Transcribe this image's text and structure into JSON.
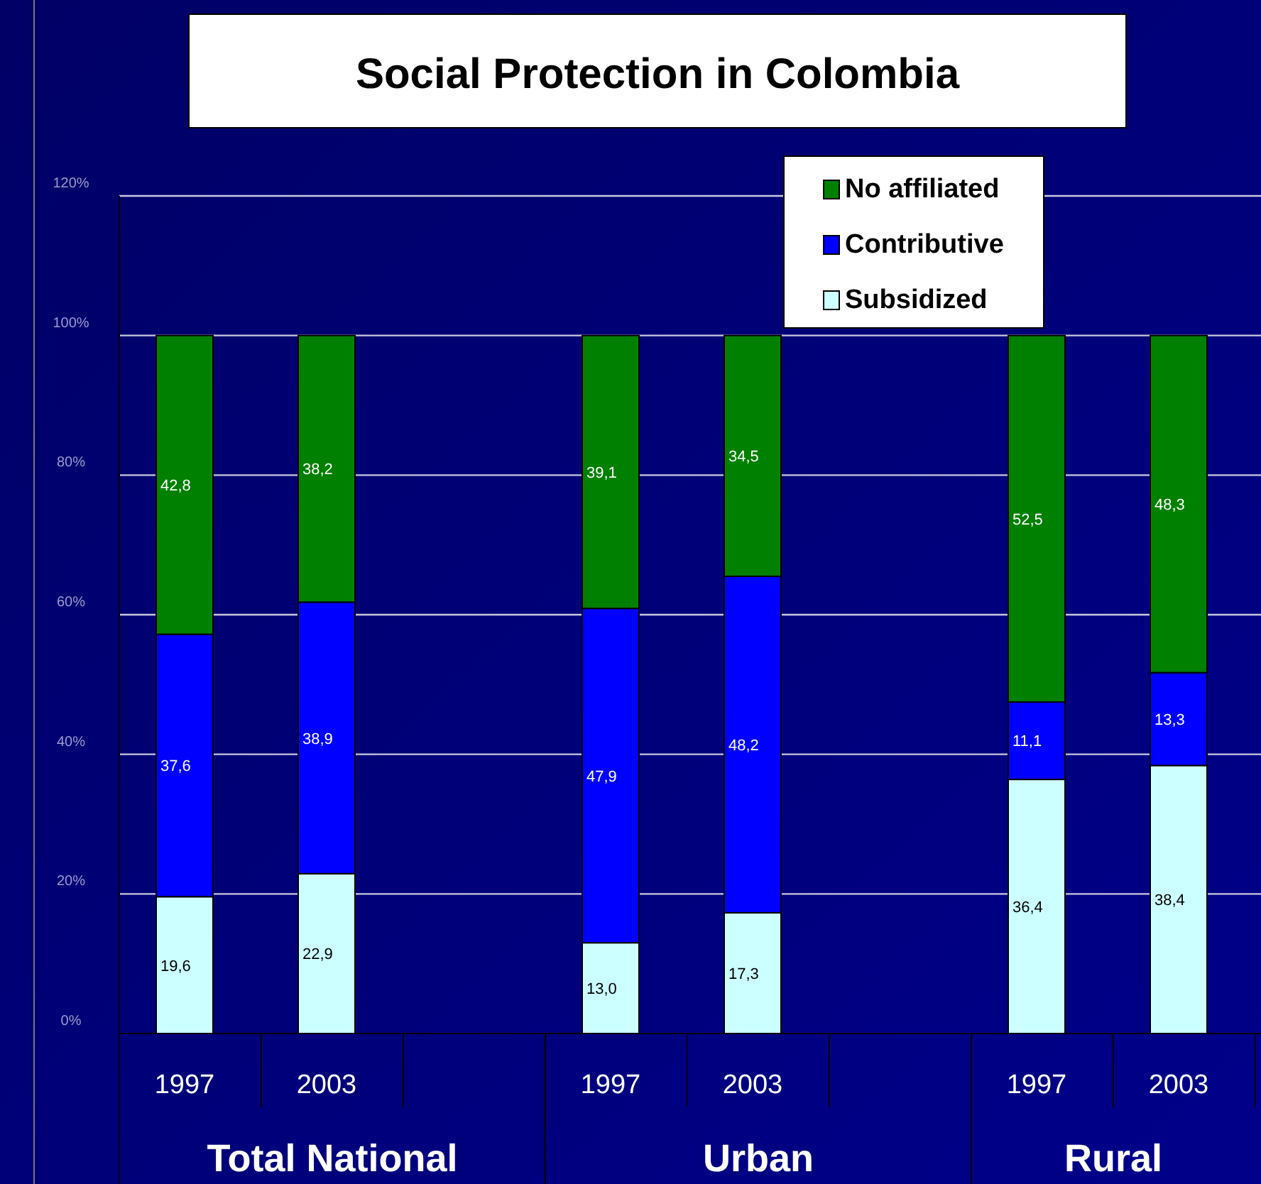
{
  "chart_data": {
    "type": "bar",
    "title": "Social Protection in Colombia",
    "stacked": true,
    "categories": [
      "1997",
      "2003",
      null,
      "1997",
      "2003",
      null,
      "1997",
      "2003"
    ],
    "series": [
      {
        "name": "Subsidized",
        "color": "#ccffff",
        "values": [
          19.6,
          22.9,
          null,
          13.0,
          17.3,
          null,
          36.4,
          38.4
        ],
        "value_labels": [
          "19,6",
          "22,9",
          null,
          "13,0",
          "17,3",
          null,
          "36,4",
          "38,4"
        ]
      },
      {
        "name": "Contributive",
        "color": "#0000ff",
        "values": [
          37.6,
          38.9,
          null,
          47.9,
          48.2,
          null,
          11.1,
          13.3
        ],
        "value_labels": [
          "37,6",
          "38,9",
          null,
          "47,9",
          "48,2",
          null,
          "11,1",
          "13,3"
        ]
      },
      {
        "name": "No affiliated",
        "color": "#008000",
        "values": [
          42.8,
          38.2,
          null,
          39.1,
          34.5,
          null,
          52.5,
          48.3
        ],
        "value_labels": [
          "42,8",
          "38,2",
          null,
          "39,1",
          "34,5",
          null,
          "52,5",
          "48,3"
        ]
      }
    ],
    "ylim": [
      0,
      120
    ],
    "yticks": [
      {
        "value": 0,
        "label": "0%"
      },
      {
        "value": 20,
        "label": "20%"
      },
      {
        "value": 40,
        "label": "40%"
      },
      {
        "value": 60,
        "label": "60%"
      },
      {
        "value": 80,
        "label": "80%"
      },
      {
        "value": 100,
        "label": "100%"
      },
      {
        "value": 120,
        "label": "120%"
      }
    ],
    "grid": "y",
    "legend": "top right",
    "annotations": [
      "Total National",
      "Urban",
      "Rural"
    ]
  }
}
